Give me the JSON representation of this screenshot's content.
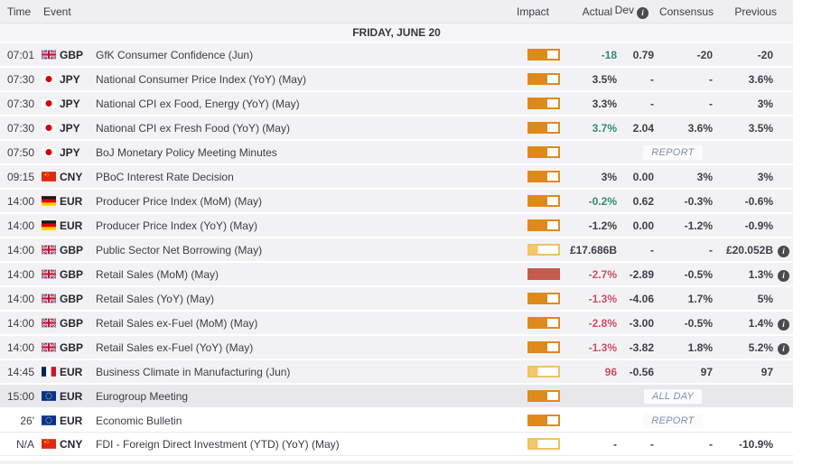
{
  "header": {
    "time": "Time",
    "event": "Event",
    "impact": "Impact",
    "actual": "Actual",
    "dev": "Dev",
    "consensus": "Consensus",
    "previous": "Previous"
  },
  "icons": {
    "info": "i"
  },
  "date_banner": "FRIDAY, JUNE 20",
  "colors": {
    "impact_high": "#c65b4e",
    "impact_medium": "#de8a1b",
    "impact_low": "#f3c76a",
    "actual_green": "#2f8c73",
    "actual_red": "#cb4e63"
  },
  "rows": [
    {
      "time": "07:01",
      "flag": "gb",
      "currency": "GBP",
      "event": "GfK Consumer Confidence (Jun)",
      "impact": "medium",
      "actual": "-18",
      "actual_color": "green",
      "dev": "0.79",
      "consensus": "-20",
      "previous": "-20",
      "previous_info": false,
      "chip": "",
      "state": "past"
    },
    {
      "time": "07:30",
      "flag": "jp",
      "currency": "JPY",
      "event": "National Consumer Price Index (YoY) (May)",
      "impact": "medium",
      "actual": "3.5%",
      "actual_color": "neutral",
      "dev": "-",
      "consensus": "-",
      "previous": "3.6%",
      "previous_info": false,
      "chip": "",
      "state": "past"
    },
    {
      "time": "07:30",
      "flag": "jp",
      "currency": "JPY",
      "event": "National CPI ex Food, Energy (YoY) (May)",
      "impact": "medium",
      "actual": "3.3%",
      "actual_color": "neutral",
      "dev": "-",
      "consensus": "-",
      "previous": "3%",
      "previous_info": false,
      "chip": "",
      "state": "past"
    },
    {
      "time": "07:30",
      "flag": "jp",
      "currency": "JPY",
      "event": "National CPI ex Fresh Food (YoY) (May)",
      "impact": "medium",
      "actual": "3.7%",
      "actual_color": "green",
      "dev": "2.04",
      "consensus": "3.6%",
      "previous": "3.5%",
      "previous_info": false,
      "chip": "",
      "state": "past"
    },
    {
      "time": "07:50",
      "flag": "jp",
      "currency": "JPY",
      "event": "BoJ Monetary Policy Meeting Minutes",
      "impact": "medium",
      "actual": "",
      "actual_color": "neutral",
      "dev": "",
      "consensus": "",
      "previous": "",
      "previous_info": false,
      "chip": "REPORT",
      "state": "past"
    },
    {
      "time": "09:15",
      "flag": "cn",
      "currency": "CNY",
      "event": "PBoC Interest Rate Decision",
      "impact": "medium",
      "actual": "3%",
      "actual_color": "neutral",
      "dev": "0.00",
      "consensus": "3%",
      "previous": "3%",
      "previous_info": false,
      "chip": "",
      "state": "past"
    },
    {
      "time": "14:00",
      "flag": "de",
      "currency": "EUR",
      "event": "Producer Price Index (MoM) (May)",
      "impact": "medium",
      "actual": "-0.2%",
      "actual_color": "green",
      "dev": "0.62",
      "consensus": "-0.3%",
      "previous": "-0.6%",
      "previous_info": false,
      "chip": "",
      "state": "past"
    },
    {
      "time": "14:00",
      "flag": "de",
      "currency": "EUR",
      "event": "Producer Price Index (YoY) (May)",
      "impact": "medium",
      "actual": "-1.2%",
      "actual_color": "neutral",
      "dev": "0.00",
      "consensus": "-1.2%",
      "previous": "-0.9%",
      "previous_info": false,
      "chip": "",
      "state": "past"
    },
    {
      "time": "14:00",
      "flag": "gb",
      "currency": "GBP",
      "event": "Public Sector Net Borrowing (May)",
      "impact": "low",
      "actual": "£17.686B",
      "actual_color": "neutral",
      "dev": "-",
      "consensus": "-",
      "previous": "£20.052B",
      "previous_info": true,
      "chip": "",
      "state": "past"
    },
    {
      "time": "14:00",
      "flag": "gb",
      "currency": "GBP",
      "event": "Retail Sales (MoM) (May)",
      "impact": "high",
      "actual": "-2.7%",
      "actual_color": "red",
      "dev": "-2.89",
      "consensus": "-0.5%",
      "previous": "1.3%",
      "previous_info": true,
      "chip": "",
      "state": "past"
    },
    {
      "time": "14:00",
      "flag": "gb",
      "currency": "GBP",
      "event": "Retail Sales (YoY) (May)",
      "impact": "medium",
      "actual": "-1.3%",
      "actual_color": "red",
      "dev": "-4.06",
      "consensus": "1.7%",
      "previous": "5%",
      "previous_info": false,
      "chip": "",
      "state": "past"
    },
    {
      "time": "14:00",
      "flag": "gb",
      "currency": "GBP",
      "event": "Retail Sales ex-Fuel (MoM) (May)",
      "impact": "medium",
      "actual": "-2.8%",
      "actual_color": "red",
      "dev": "-3.00",
      "consensus": "-0.5%",
      "previous": "1.4%",
      "previous_info": true,
      "chip": "",
      "state": "past"
    },
    {
      "time": "14:00",
      "flag": "gb",
      "currency": "GBP",
      "event": "Retail Sales ex-Fuel (YoY) (May)",
      "impact": "medium",
      "actual": "-1.3%",
      "actual_color": "red",
      "dev": "-3.82",
      "consensus": "1.8%",
      "previous": "5.2%",
      "previous_info": true,
      "chip": "",
      "state": "past"
    },
    {
      "time": "14:45",
      "flag": "fr",
      "currency": "EUR",
      "event": "Business Climate in Manufacturing (Jun)",
      "impact": "low",
      "actual": "96",
      "actual_color": "red",
      "dev": "-0.56",
      "consensus": "97",
      "previous": "97",
      "previous_info": false,
      "chip": "",
      "state": "past"
    },
    {
      "time": "15:00",
      "flag": "eu",
      "currency": "EUR",
      "event": "Eurogroup Meeting",
      "impact": "medium",
      "actual": "",
      "actual_color": "neutral",
      "dev": "",
      "consensus": "",
      "previous": "",
      "previous_info": false,
      "chip": "ALL DAY",
      "state": "current"
    },
    {
      "time": "26'",
      "flag": "eu",
      "currency": "EUR",
      "event": "Economic Bulletin",
      "impact": "medium",
      "actual": "",
      "actual_color": "neutral",
      "dev": "",
      "consensus": "",
      "previous": "",
      "previous_info": false,
      "chip": "REPORT",
      "state": "future"
    },
    {
      "time": "N/A",
      "flag": "cn",
      "currency": "CNY",
      "event": "FDI - Foreign Direct Investment (YTD) (YoY) (May)",
      "impact": "low",
      "actual": "-",
      "actual_color": "neutral",
      "dev": "-",
      "consensus": "-",
      "previous": "-10.9%",
      "previous_info": false,
      "chip": "",
      "state": "future"
    }
  ]
}
